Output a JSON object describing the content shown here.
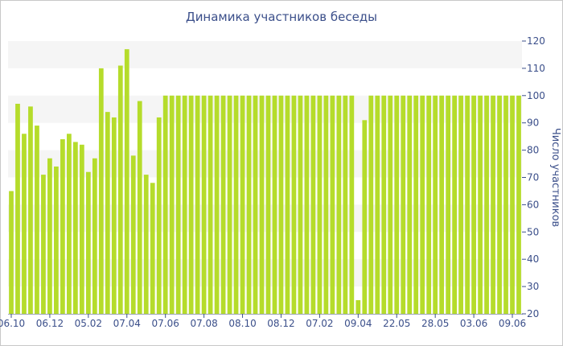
{
  "chart_data": {
    "type": "bar",
    "title": "Динамика участников беседы",
    "ylabel": "Число участников",
    "ylim": [
      20,
      120
    ],
    "yticks": [
      20,
      30,
      40,
      50,
      60,
      70,
      80,
      90,
      100,
      110,
      120
    ],
    "y_axis_position": "right",
    "bar_color": "#b5dc2b",
    "band_color": "#f5f5f5",
    "x_tick_labels": [
      "06.10",
      "06.12",
      "05.02",
      "07.04",
      "07.06",
      "07.08",
      "08.10",
      "08.12",
      "07.02",
      "09.04",
      "22.05",
      "28.05",
      "03.06",
      "09.06"
    ],
    "x_tick_positions": [
      0,
      6,
      12,
      18,
      24,
      30,
      36,
      42,
      48,
      54,
      60,
      66,
      72,
      78
    ],
    "values": [
      65,
      97,
      86,
      96,
      89,
      71,
      77,
      74,
      84,
      86,
      83,
      82,
      72,
      77,
      110,
      94,
      92,
      111,
      117,
      78,
      98,
      71,
      68,
      92,
      100,
      100,
      100,
      100,
      100,
      100,
      100,
      100,
      100,
      100,
      100,
      100,
      100,
      100,
      100,
      100,
      100,
      100,
      100,
      100,
      100,
      100,
      100,
      100,
      100,
      100,
      100,
      100,
      100,
      100,
      25,
      91,
      100,
      100,
      100,
      100,
      100,
      100,
      100,
      100,
      100,
      100,
      100,
      100,
      100,
      100,
      100,
      100,
      100,
      100,
      100,
      100,
      100,
      100,
      100,
      100
    ]
  }
}
